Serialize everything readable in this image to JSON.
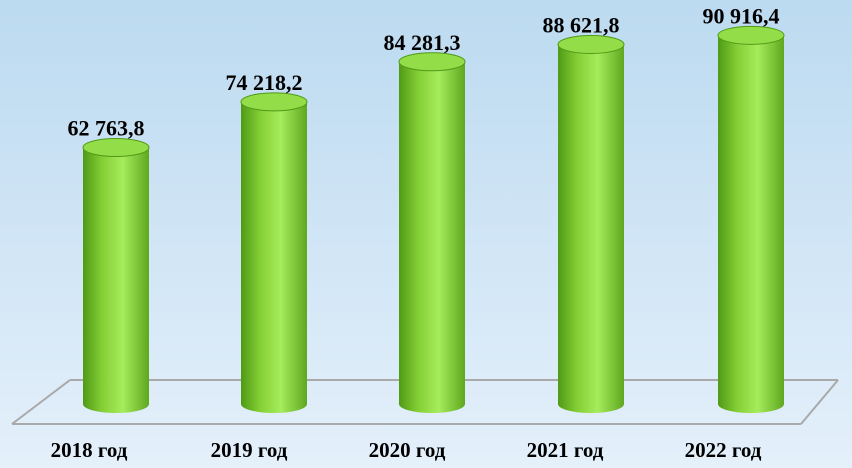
{
  "chart_data": {
    "type": "bar",
    "style": "3d-cylinder",
    "categories": [
      "2018 год",
      "2019 год",
      "2020 год",
      "2021 год",
      "2022 год"
    ],
    "values": [
      62763.8,
      74218.2,
      84281.3,
      88621.8,
      90916.4
    ],
    "value_labels": [
      "62 763,8",
      "74 218,2",
      "84 281,3",
      "88 621,8",
      "90 916,4"
    ],
    "title": "",
    "xlabel": "",
    "ylabel": "",
    "grid": false,
    "legend": "none"
  },
  "colors": {
    "bar_light": "#a6ec5c",
    "bar_mid": "#86d036",
    "bar_dark": "#4f9a16",
    "bar_top": "#93de48",
    "floor_line": "#a9a9a9"
  }
}
